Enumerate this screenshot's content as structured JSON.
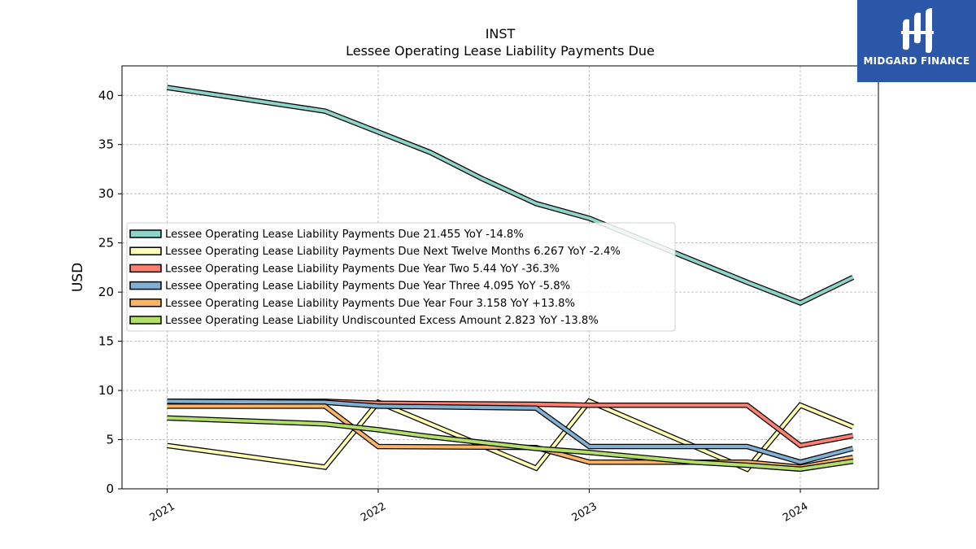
{
  "logo": {
    "text": "MIDGARD FINANCE"
  },
  "chart_data": {
    "type": "line",
    "title": "INST",
    "subtitle": "Lessee Operating Lease Liability Payments Due",
    "xlabel": "",
    "ylabel": "USD",
    "ylim": [
      0,
      43
    ],
    "yticks": [
      0,
      5,
      10,
      15,
      20,
      25,
      30,
      35,
      40
    ],
    "xlim": [
      "2020-10-15",
      "2024-05-15"
    ],
    "xticks": [
      "2021",
      "2022",
      "2023",
      "2024"
    ],
    "grid": true,
    "legend_position": "center-left",
    "series": [
      {
        "name": "Lessee Operating Lease Liability Payments Due  21.455 YoY -14.8%",
        "color": "#8dd3c7",
        "points": [
          [
            "2021-01-01",
            40.8
          ],
          [
            "2021-10-01",
            38.4
          ],
          [
            "2022-04-01",
            34.2
          ],
          [
            "2022-07-01",
            31.5
          ],
          [
            "2022-10-01",
            29.0
          ],
          [
            "2023-01-01",
            27.5
          ],
          [
            "2023-07-01",
            23.2
          ],
          [
            "2023-10-01",
            21.0
          ],
          [
            "2024-01-01",
            18.9
          ],
          [
            "2024-04-01",
            21.5
          ]
        ]
      },
      {
        "name": "Lessee Operating Lease Liability Payments Due Next Twelve Months  6.267 YoY -2.4%",
        "color": "#ffffb3",
        "points": [
          [
            "2021-01-01",
            4.4
          ],
          [
            "2021-10-01",
            2.2
          ],
          [
            "2022-01-01",
            8.8
          ],
          [
            "2022-10-01",
            2.1
          ],
          [
            "2023-01-01",
            8.9
          ],
          [
            "2023-10-01",
            2.0
          ],
          [
            "2024-01-01",
            8.5
          ],
          [
            "2024-04-01",
            6.3
          ]
        ]
      },
      {
        "name": "Lessee Operating Lease Liability Payments Due Year Two  5.44 YoY -36.3%",
        "color": "#fb8072",
        "points": [
          [
            "2021-01-01",
            8.9
          ],
          [
            "2021-10-01",
            8.9
          ],
          [
            "2022-01-01",
            8.7
          ],
          [
            "2022-10-01",
            8.6
          ],
          [
            "2023-01-01",
            8.5
          ],
          [
            "2023-10-01",
            8.5
          ],
          [
            "2024-01-01",
            4.4
          ],
          [
            "2024-04-01",
            5.4
          ]
        ]
      },
      {
        "name": "Lessee Operating Lease Liability Payments Due Year Three  4.095 YoY -5.8%",
        "color": "#80b1d3",
        "points": [
          [
            "2021-01-01",
            8.9
          ],
          [
            "2021-10-01",
            8.8
          ],
          [
            "2022-01-01",
            8.4
          ],
          [
            "2022-10-01",
            8.2
          ],
          [
            "2023-01-01",
            4.3
          ],
          [
            "2023-10-01",
            4.3
          ],
          [
            "2024-01-01",
            2.7
          ],
          [
            "2024-04-01",
            4.1
          ]
        ]
      },
      {
        "name": "Lessee Operating Lease Liability Payments Due Year Four  3.158 YoY +13.8%",
        "color": "#fdb462",
        "points": [
          [
            "2021-01-01",
            8.4
          ],
          [
            "2021-10-01",
            8.4
          ],
          [
            "2022-01-01",
            4.3
          ],
          [
            "2022-10-01",
            4.2
          ],
          [
            "2023-01-01",
            2.7
          ],
          [
            "2023-10-01",
            2.7
          ],
          [
            "2024-01-01",
            2.2
          ],
          [
            "2024-04-01",
            3.2
          ]
        ]
      },
      {
        "name": "Lessee Operating Lease Liability Undiscounted Excess Amount  2.823 YoY -13.8%",
        "color": "#b3de69",
        "points": [
          [
            "2021-01-01",
            7.2
          ],
          [
            "2021-10-01",
            6.6
          ],
          [
            "2022-01-01",
            6.0
          ],
          [
            "2022-04-01",
            5.3
          ],
          [
            "2022-10-01",
            4.1
          ],
          [
            "2023-01-01",
            3.7
          ],
          [
            "2023-07-01",
            2.7
          ],
          [
            "2023-10-01",
            2.4
          ],
          [
            "2024-01-01",
            2.0
          ],
          [
            "2024-04-01",
            2.8
          ]
        ]
      }
    ]
  }
}
